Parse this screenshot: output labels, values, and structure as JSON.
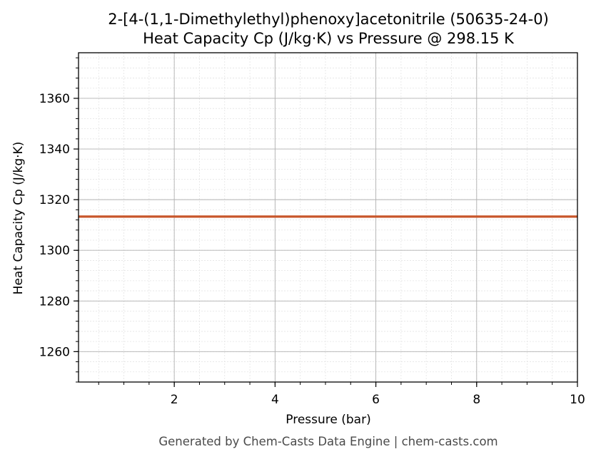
{
  "chart_data": {
    "type": "line",
    "title": "2-[4-(1,1-Dimethylethyl)phenoxy]acetonitrile (50635-24-0)",
    "subtitle": "Heat Capacity Cp (J/kg·K) vs Pressure @ 298.15 K",
    "xlabel": "Pressure (bar)",
    "ylabel": "Heat Capacity Cp (J/kg·K)",
    "xlim": [
      0.1,
      10
    ],
    "ylim": [
      1248,
      1378
    ],
    "x_ticks": [
      2,
      4,
      6,
      8,
      10
    ],
    "x_tick_labels": [
      "2",
      "4",
      "6",
      "8",
      "10"
    ],
    "y_ticks": [
      1260,
      1280,
      1300,
      1320,
      1340,
      1360
    ],
    "y_tick_labels": [
      "1260",
      "1280",
      "1300",
      "1320",
      "1340",
      "1360"
    ],
    "grid": true,
    "series": [
      {
        "color": "#c8562a",
        "x": [
          0.1,
          10
        ],
        "y": [
          1313.3,
          1313.3
        ]
      }
    ]
  },
  "footer": "Generated by Chem-Casts Data Engine | chem-casts.com"
}
